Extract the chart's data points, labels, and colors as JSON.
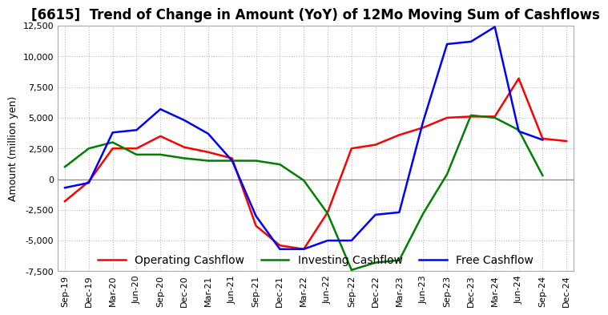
{
  "title": "[6615]  Trend of Change in Amount (YoY) of 12Mo Moving Sum of Cashflows",
  "ylabel": "Amount (million yen)",
  "xlabels": [
    "Sep-19",
    "Dec-19",
    "Mar-20",
    "Jun-20",
    "Sep-20",
    "Dec-20",
    "Mar-21",
    "Jun-21",
    "Sep-21",
    "Dec-21",
    "Mar-22",
    "Jun-22",
    "Sep-22",
    "Dec-22",
    "Mar-23",
    "Jun-23",
    "Sep-23",
    "Dec-23",
    "Mar-24",
    "Jun-24",
    "Sep-24",
    "Dec-24"
  ],
  "operating": [
    -1800,
    -200,
    2500,
    2500,
    3500,
    2600,
    2200,
    1700,
    -3800,
    -5400,
    -5700,
    -2700,
    2500,
    2800,
    3600,
    4200,
    5000,
    5100,
    5100,
    8200,
    3300,
    3100
  ],
  "investing": [
    1000,
    2500,
    3000,
    2000,
    2000,
    1700,
    1500,
    1500,
    1500,
    1200,
    -100,
    -2800,
    -7400,
    -6800,
    -6600,
    -2800,
    400,
    5200,
    5000,
    4000,
    300,
    null
  ],
  "free": [
    -700,
    -300,
    3800,
    4000,
    5700,
    4800,
    3700,
    1500,
    -3000,
    -5700,
    -5700,
    -5000,
    -5000,
    -2900,
    -2700,
    4700,
    11000,
    11200,
    12400,
    3900,
    3200,
    null
  ],
  "operating_color": "#ff0000",
  "investing_color": "#008000",
  "free_color": "#0000ff",
  "bg_color": "#ffffff",
  "plot_bg_color": "#ffffff",
  "ylim": [
    -7500,
    12500
  ],
  "yticks": [
    -7500,
    -5000,
    -2500,
    0,
    2500,
    5000,
    7500,
    10000,
    12500
  ],
  "grid_color": "#bbbbbb",
  "linewidth": 1.8,
  "title_fontsize": 12,
  "axis_fontsize": 9,
  "tick_fontsize": 8,
  "legend_fontsize": 10
}
